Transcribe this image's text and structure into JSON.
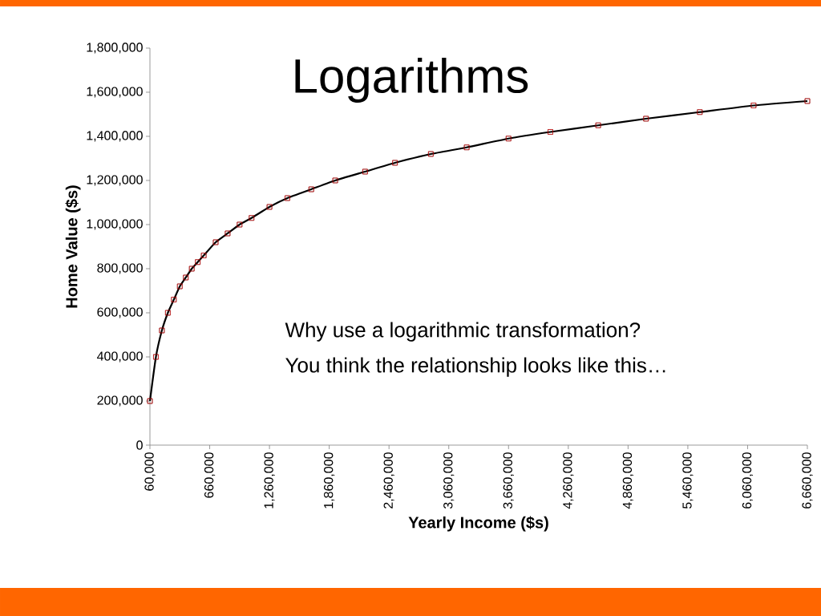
{
  "chart_data": {
    "type": "line",
    "title": "Logarithms",
    "xlabel": "Yearly Income ($s)",
    "ylabel": "Home Value ($s)",
    "annotations": [
      "Why use a logarithmic transformation?",
      "You think the relationship looks like this…"
    ],
    "x": [
      60000,
      120000,
      180000,
      240000,
      300000,
      360000,
      420000,
      480000,
      540000,
      600000,
      720000,
      840000,
      960000,
      1080000,
      1260000,
      1440000,
      1680000,
      1920000,
      2220000,
      2520000,
      2880000,
      3240000,
      3660000,
      4080000,
      4560000,
      5040000,
      5580000,
      6120000,
      6660000
    ],
    "series": [
      {
        "color": "#000000",
        "values": [
          200000,
          400000,
          520000,
          600000,
          660000,
          720000,
          760000,
          800000,
          830000,
          860000,
          920000,
          960000,
          1000000,
          1030000,
          1080000,
          1120000,
          1160000,
          1200000,
          1240000,
          1280000,
          1320000,
          1350000,
          1390000,
          1420000,
          1450000,
          1480000,
          1510000,
          1540000,
          1560000
        ]
      },
      {
        "type": "scatter",
        "color": "#ff0000",
        "values": [
          200000,
          400000,
          520000,
          600000,
          660000,
          720000,
          760000,
          800000,
          830000,
          860000,
          920000,
          960000,
          1000000,
          1030000,
          1080000,
          1120000,
          1160000,
          1200000,
          1240000,
          1280000,
          1320000,
          1350000,
          1390000,
          1420000,
          1450000,
          1480000,
          1510000,
          1540000,
          1560000
        ]
      }
    ],
    "marker": "square",
    "xlim": [
      60000,
      6660000
    ],
    "xticks": [
      {
        "value": 60000,
        "label": "60,000"
      },
      {
        "value": 660000,
        "label": "660,000"
      },
      {
        "value": 1260000,
        "label": "1,260,000"
      },
      {
        "value": 1860000,
        "label": "1,860,000"
      },
      {
        "value": 2460000,
        "label": "2,460,000"
      },
      {
        "value": 3060000,
        "label": "3,060,000"
      },
      {
        "value": 3660000,
        "label": "3,660,000"
      },
      {
        "value": 4260000,
        "label": "4,260,000"
      },
      {
        "value": 4860000,
        "label": "4,860,000"
      },
      {
        "value": 5460000,
        "label": "5,460,000"
      },
      {
        "value": 6060000,
        "label": "6,060,000"
      },
      {
        "value": 6660000,
        "label": "6,660,000"
      }
    ],
    "ylim": [
      0,
      1800000
    ],
    "yticks": [
      0,
      {
        "value": 200000,
        "label": "200,000"
      },
      {
        "value": 400000,
        "label": "400,000"
      },
      {
        "value": 600000,
        "label": "600,000"
      },
      {
        "value": 800000,
        "label": "800,000"
      },
      {
        "value": 1000000,
        "label": "1,000,000"
      },
      {
        "value": 1200000,
        "label": "1,200,000"
      },
      {
        "value": 1400000,
        "label": "1,400,000"
      },
      {
        "value": 1600000,
        "label": "1,600,000"
      },
      {
        "value": 1800000,
        "label": "1,800,000"
      }
    ]
  }
}
